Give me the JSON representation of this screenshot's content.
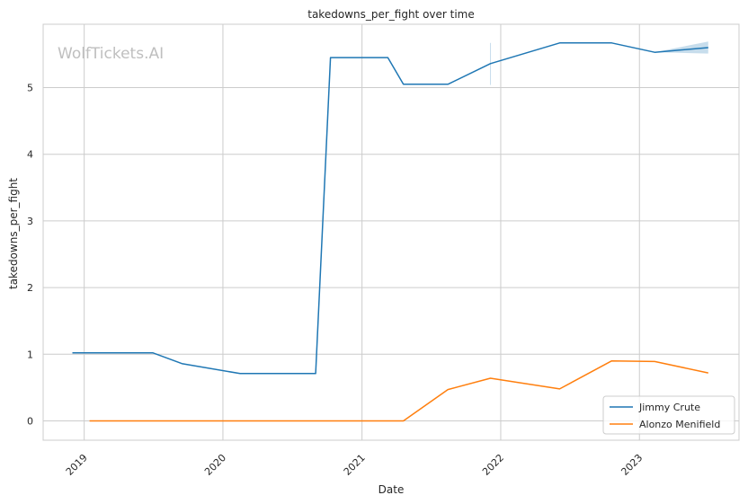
{
  "chart_data": {
    "type": "line",
    "title": "takedowns_per_fight over time",
    "xlabel": "Date",
    "ylabel": "takedowns_per_fight",
    "watermark": "WolfTickets.AI",
    "x_ticks": [
      "2019",
      "2020",
      "2021",
      "2022",
      "2023"
    ],
    "y_ticks": [
      "0",
      "1",
      "2",
      "3",
      "4",
      "5"
    ],
    "xlim": [
      "2018-09-15",
      "2023-09-20"
    ],
    "ylim": [
      -0.29,
      5.95
    ],
    "grid": true,
    "legend_position": "lower-right",
    "series": [
      {
        "name": "Jimmy Crute",
        "color": "#1f77b4",
        "points": [
          [
            "2018-12-01",
            1.02
          ],
          [
            "2019-07-01",
            1.02
          ],
          [
            "2019-09-15",
            0.86
          ],
          [
            "2020-02-15",
            0.71
          ],
          [
            "2020-09-01",
            0.71
          ],
          [
            "2020-10-10",
            5.45
          ],
          [
            "2021-03-10",
            5.45
          ],
          [
            "2021-04-20",
            5.05
          ],
          [
            "2021-08-15",
            5.05
          ],
          [
            "2021-12-05",
            5.36
          ],
          [
            "2022-06-05",
            5.67
          ],
          [
            "2022-10-20",
            5.67
          ],
          [
            "2023-02-10",
            5.53
          ],
          [
            "2023-07-01",
            5.6
          ]
        ],
        "band": [
          [
            "2023-02-10",
            5.53,
            5.53
          ],
          [
            "2023-07-01",
            5.51,
            5.69
          ]
        ],
        "spike": [
          "2021-12-05",
          5.04,
          5.67
        ]
      },
      {
        "name": "Alonzo Menifield",
        "color": "#ff7f0e",
        "points": [
          [
            "2019-01-15",
            0.0
          ],
          [
            "2021-04-20",
            0.0
          ],
          [
            "2021-08-15",
            0.47
          ],
          [
            "2021-12-05",
            0.64
          ],
          [
            "2022-06-05",
            0.48
          ],
          [
            "2022-10-20",
            0.9
          ],
          [
            "2023-02-10",
            0.89
          ],
          [
            "2023-07-01",
            0.72
          ]
        ]
      }
    ]
  }
}
